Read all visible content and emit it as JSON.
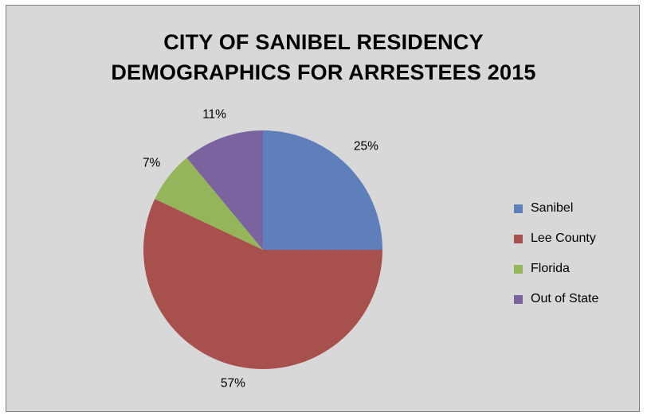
{
  "chart_data": {
    "type": "pie",
    "title": "CITY OF SANIBEL RESIDENCY DEMOGRAPHICS FOR ARRESTEES 2015",
    "title_lines": [
      "CITY OF SANIBEL RESIDENCY",
      "DEMOGRAPHICS FOR ARRESTEES 2015"
    ],
    "categories": [
      "Sanibel",
      "Lee County",
      "Florida",
      "Out of State"
    ],
    "values": [
      25,
      57,
      7,
      11
    ],
    "data_labels": [
      "25%",
      "57%",
      "7%",
      "11%"
    ],
    "colors": [
      "#5f7fba",
      "#a8504d",
      "#94b55a",
      "#7b63a0"
    ],
    "legend_position": "right",
    "start_angle": "12 o'clock",
    "direction": "clockwise"
  }
}
